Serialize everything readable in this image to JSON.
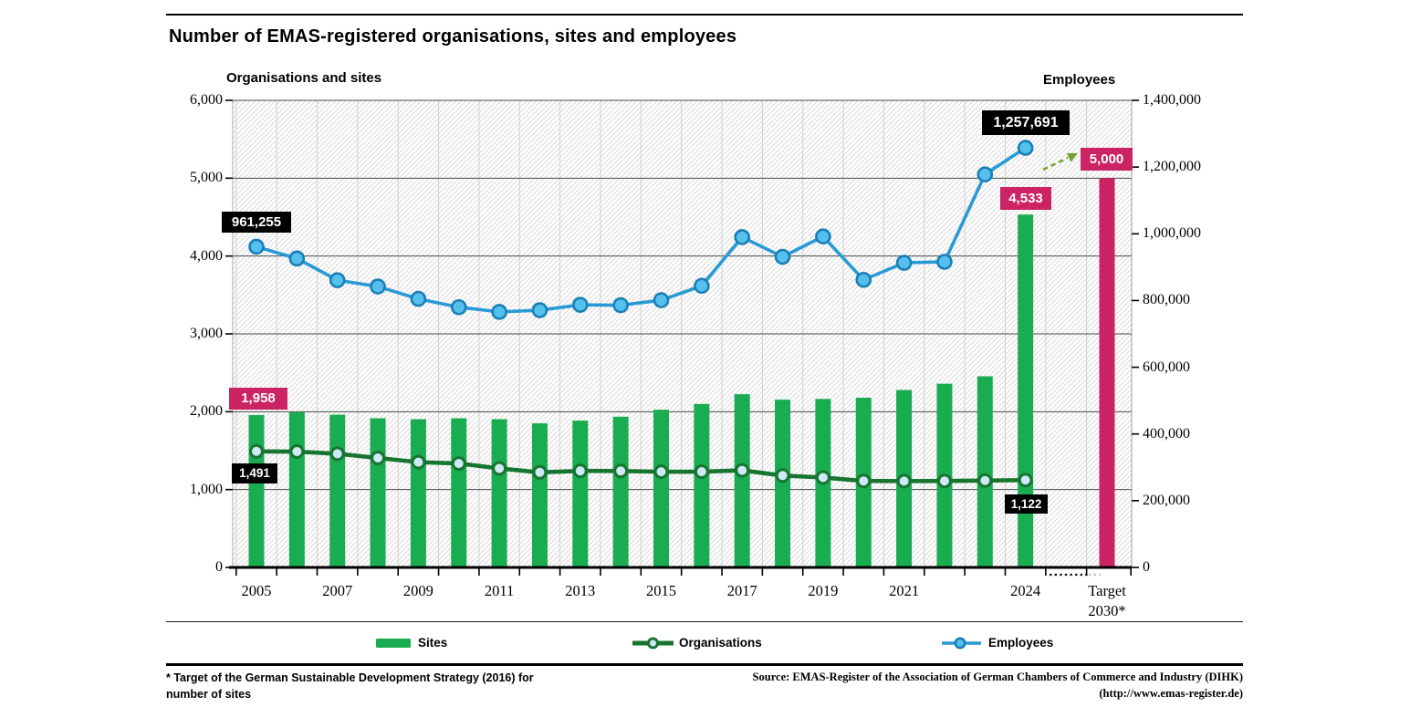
{
  "page": {
    "footnote_line1": "* Target of the German Sustainable Development Strategy (2016) for",
    "footnote_line2": "number of sites",
    "source_line1": "Source: EMAS-Register of the Association of German Chambers of Commerce and Industry (DIHK)",
    "source_line2": "(http://www.emas-register.de)"
  },
  "chart_data": {
    "type": "bar",
    "title": "Number of EMAS-registered organisations, sites and employees",
    "left_axis": {
      "title": "Organisations and sites",
      "min": 0,
      "max": 6000,
      "step": 1000,
      "tick_labels": [
        "6,000",
        "5,000",
        "4,000",
        "3,000",
        "2,000",
        "1,000",
        "0"
      ]
    },
    "right_axis": {
      "title": "Employees",
      "min": 0,
      "max": 1400000,
      "step": 200000,
      "tick_labels": [
        "1,400,000",
        "1,200,000",
        "1,000,000",
        "800,000",
        "600,000",
        "400,000",
        "200,000",
        "0"
      ]
    },
    "categories": [
      "2005",
      "2006",
      "2007",
      "2008",
      "2009",
      "2010",
      "2011",
      "2012",
      "2013",
      "2014",
      "2015",
      "2016",
      "2017",
      "2018",
      "2019",
      "2020",
      "2021",
      "2022",
      "2023",
      "2024"
    ],
    "x_shown_tick_indices": [
      0,
      2,
      4,
      6,
      8,
      10,
      12,
      14,
      16,
      19
    ],
    "series": [
      {
        "name": "Sites",
        "type": "bar",
        "axis": "left",
        "color": "#1AAC51",
        "values": [
          1958,
          1995,
          1962,
          1916,
          1904,
          1916,
          1904,
          1851,
          1886,
          1936,
          2026,
          2100,
          2225,
          2155,
          2165,
          2180,
          2280,
          2360,
          2455,
          4533
        ]
      },
      {
        "name": "Organisations",
        "type": "line",
        "axis": "left",
        "color": "#17752F",
        "marker_fill": "#CFE9F6",
        "values": [
          1491,
          1488,
          1460,
          1406,
          1352,
          1335,
          1272,
          1221,
          1240,
          1239,
          1229,
          1230,
          1247,
          1180,
          1155,
          1111,
          1109,
          1111,
          1116,
          1122
        ]
      },
      {
        "name": "Employees",
        "type": "line",
        "axis": "right",
        "color": "#299AD5",
        "marker_fill": "#55BFEE",
        "marker_stroke": "#1A7FB5",
        "values": [
          961255,
          926000,
          861000,
          842000,
          805000,
          780000,
          766000,
          771000,
          787000,
          786000,
          801000,
          844000,
          990000,
          931000,
          992000,
          862000,
          913000,
          916000,
          1178000,
          1257691
        ]
      }
    ],
    "target_bar": {
      "category_line1": "Target",
      "category_line2": "2030*",
      "value": 5000,
      "color": "#CB2363",
      "label": "5,000"
    },
    "annotations": {
      "employees_first": "961,255",
      "employees_last": "1,257,691",
      "sites_first": "1,958",
      "sites_last": "4,533",
      "orgs_first": "1,491",
      "orgs_last": "1,122",
      "target": "5,000"
    },
    "styles": {
      "arrow_color": "#76A32E",
      "hatch_color": "#DADADA",
      "grid_v_color": "#CFCFCF",
      "grid_h_color": "#4A4A4A"
    },
    "grid": true,
    "legend_position": "bottom"
  }
}
